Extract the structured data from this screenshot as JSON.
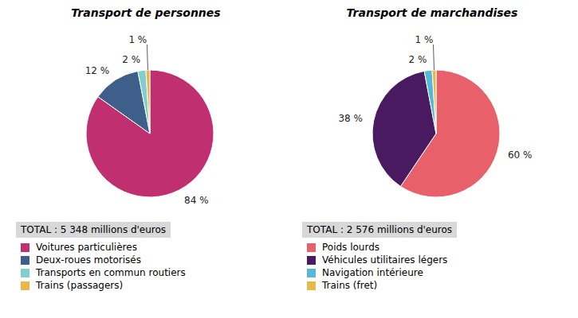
{
  "chart_data": [
    {
      "type": "pie",
      "title": "Transport de personnes",
      "categories": [
        "Voitures particulières",
        "Deux-roues motorisés",
        "Transports en commun routiers",
        "Trains (passagers)"
      ],
      "values": [
        84,
        12,
        2,
        1
      ],
      "value_labels": [
        "84 %",
        "12 %",
        "2 %",
        "1 %"
      ],
      "colors": [
        "#c03070",
        "#3d5f8a",
        "#80cece",
        "#e8b84b"
      ],
      "data_labels": true,
      "legend": "bottom",
      "annotations": [
        "TOTAL : 5 348 millions d'euros"
      ]
    },
    {
      "type": "pie",
      "title": "Transport de marchandises",
      "categories": [
        "Poids lourds",
        "Véhicules utilitaires légers",
        "Navigation intérieure",
        "Trains (fret)"
      ],
      "values": [
        60,
        38,
        2,
        1
      ],
      "value_labels": [
        "60 %",
        "38 %",
        "2 %",
        "1 %"
      ],
      "colors": [
        "#e8606a",
        "#4a1a60",
        "#55b8d8",
        "#e8b84b"
      ],
      "data_labels": true,
      "legend": "bottom",
      "annotations": [
        "TOTAL : 2 576 millions d'euros"
      ]
    }
  ]
}
